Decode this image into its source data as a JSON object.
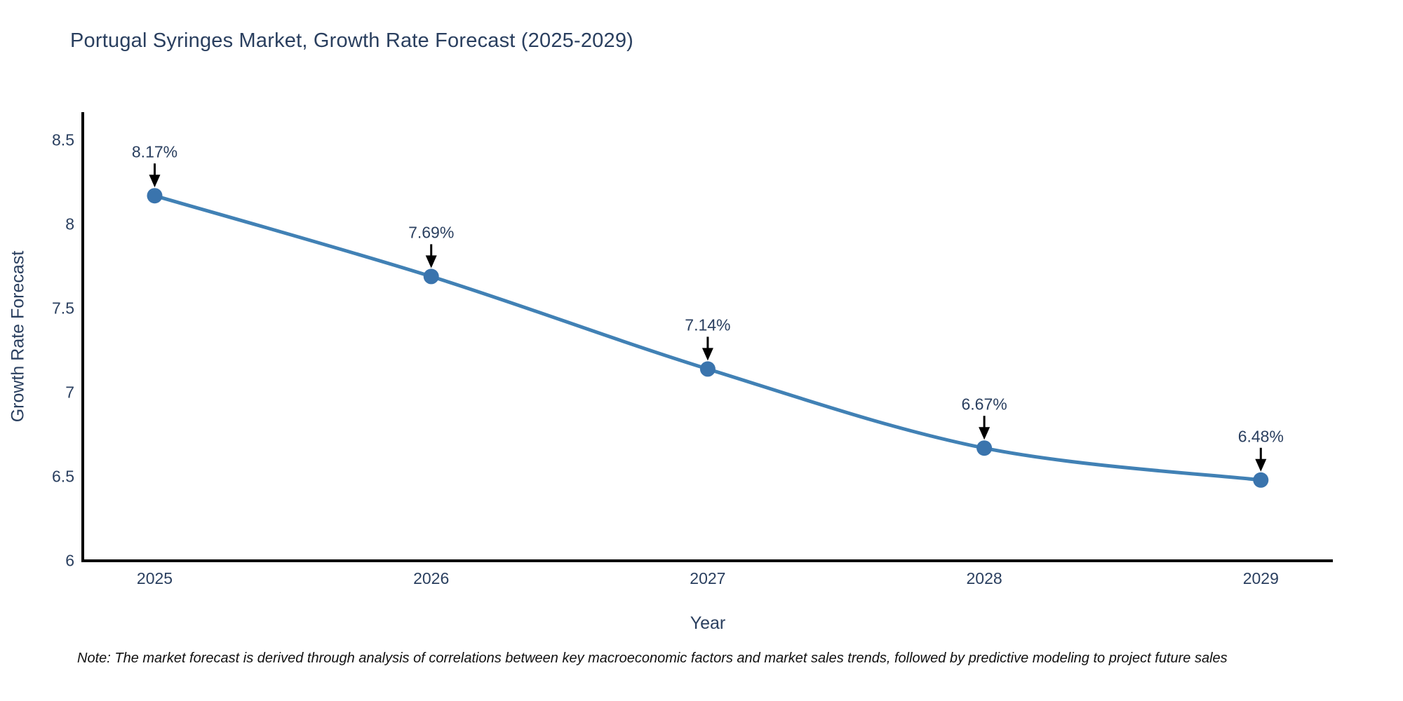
{
  "chart_data": {
    "type": "line",
    "title": "Portugal Syringes Market, Growth Rate Forecast (2025-2029)",
    "categories": [
      "2025",
      "2026",
      "2027",
      "2028",
      "2029"
    ],
    "values": [
      8.17,
      7.69,
      7.14,
      6.67,
      6.48
    ],
    "point_labels": [
      "8.17%",
      "7.69%",
      "7.14%",
      "6.67%",
      "6.48%"
    ],
    "series": [
      {
        "name": "Growth Rate Forecast",
        "values": [
          8.17,
          7.69,
          7.14,
          6.67,
          6.48
        ]
      }
    ],
    "xlabel": "Year",
    "ylabel": "Growth Rate Forecast",
    "ytick_labels": [
      "6",
      "6.5",
      "7",
      "7.5",
      "8",
      "8.5"
    ],
    "ytick_values": [
      6,
      6.5,
      7,
      7.5,
      8,
      8.5
    ],
    "ylim": [
      6,
      8.67
    ],
    "grid": false,
    "legend": "none",
    "line_shape": "spline",
    "line_color": "#4181b5",
    "marker_color": "#3a74ad",
    "axis_color": "#000000",
    "arrow_color": "#000000",
    "text_color": "#2a3f5f",
    "note": "Note: The market forecast is derived through analysis of correlations between key macroeconomic factors and market sales trends, followed by predictive modeling to project future sales"
  }
}
